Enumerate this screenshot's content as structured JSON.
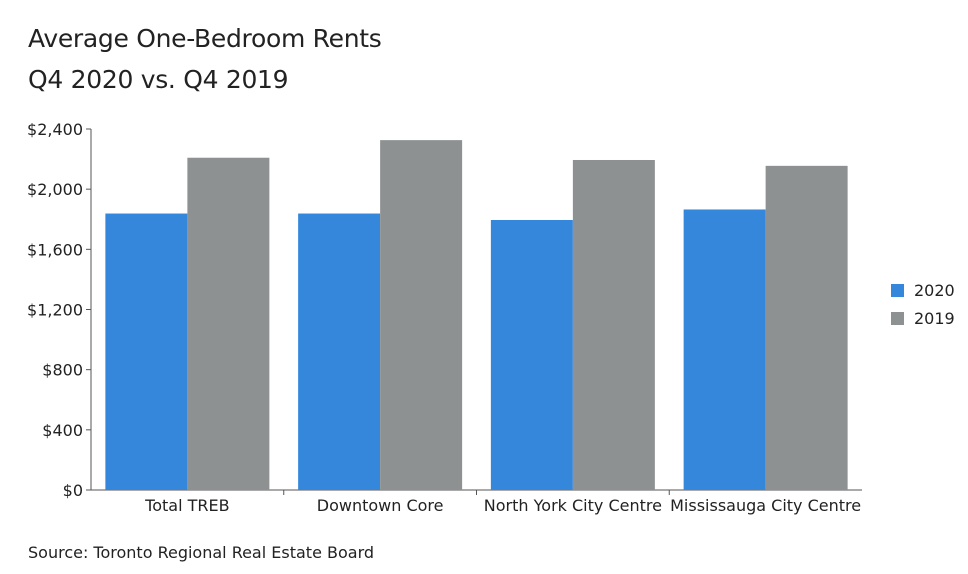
{
  "chart_data": {
    "type": "bar",
    "title": "Average One-Bedroom Rents",
    "subtitle": "Q4 2020 vs. Q4 2019",
    "categories": [
      "Total TREB",
      "Downtown Core",
      "North York City Centre",
      "Mississauga City Centre"
    ],
    "series": [
      {
        "name": "2020",
        "color": "#3487db",
        "values": [
          1838,
          1838,
          1795,
          1865
        ]
      },
      {
        "name": "2019",
        "color": "#8e9192",
        "values": [
          2209,
          2326,
          2194,
          2155
        ]
      }
    ],
    "ylim": [
      0,
      2400
    ],
    "yticks": [
      0,
      400,
      800,
      1200,
      1600,
      2000,
      2400
    ],
    "ytick_labels": [
      "$0",
      "$400",
      "$800",
      "$1,200",
      "$1,600",
      "$2,000",
      "$2,400"
    ],
    "grid": false,
    "legend_position": "right"
  },
  "source": "Source: Toronto Regional Real Estate Board"
}
